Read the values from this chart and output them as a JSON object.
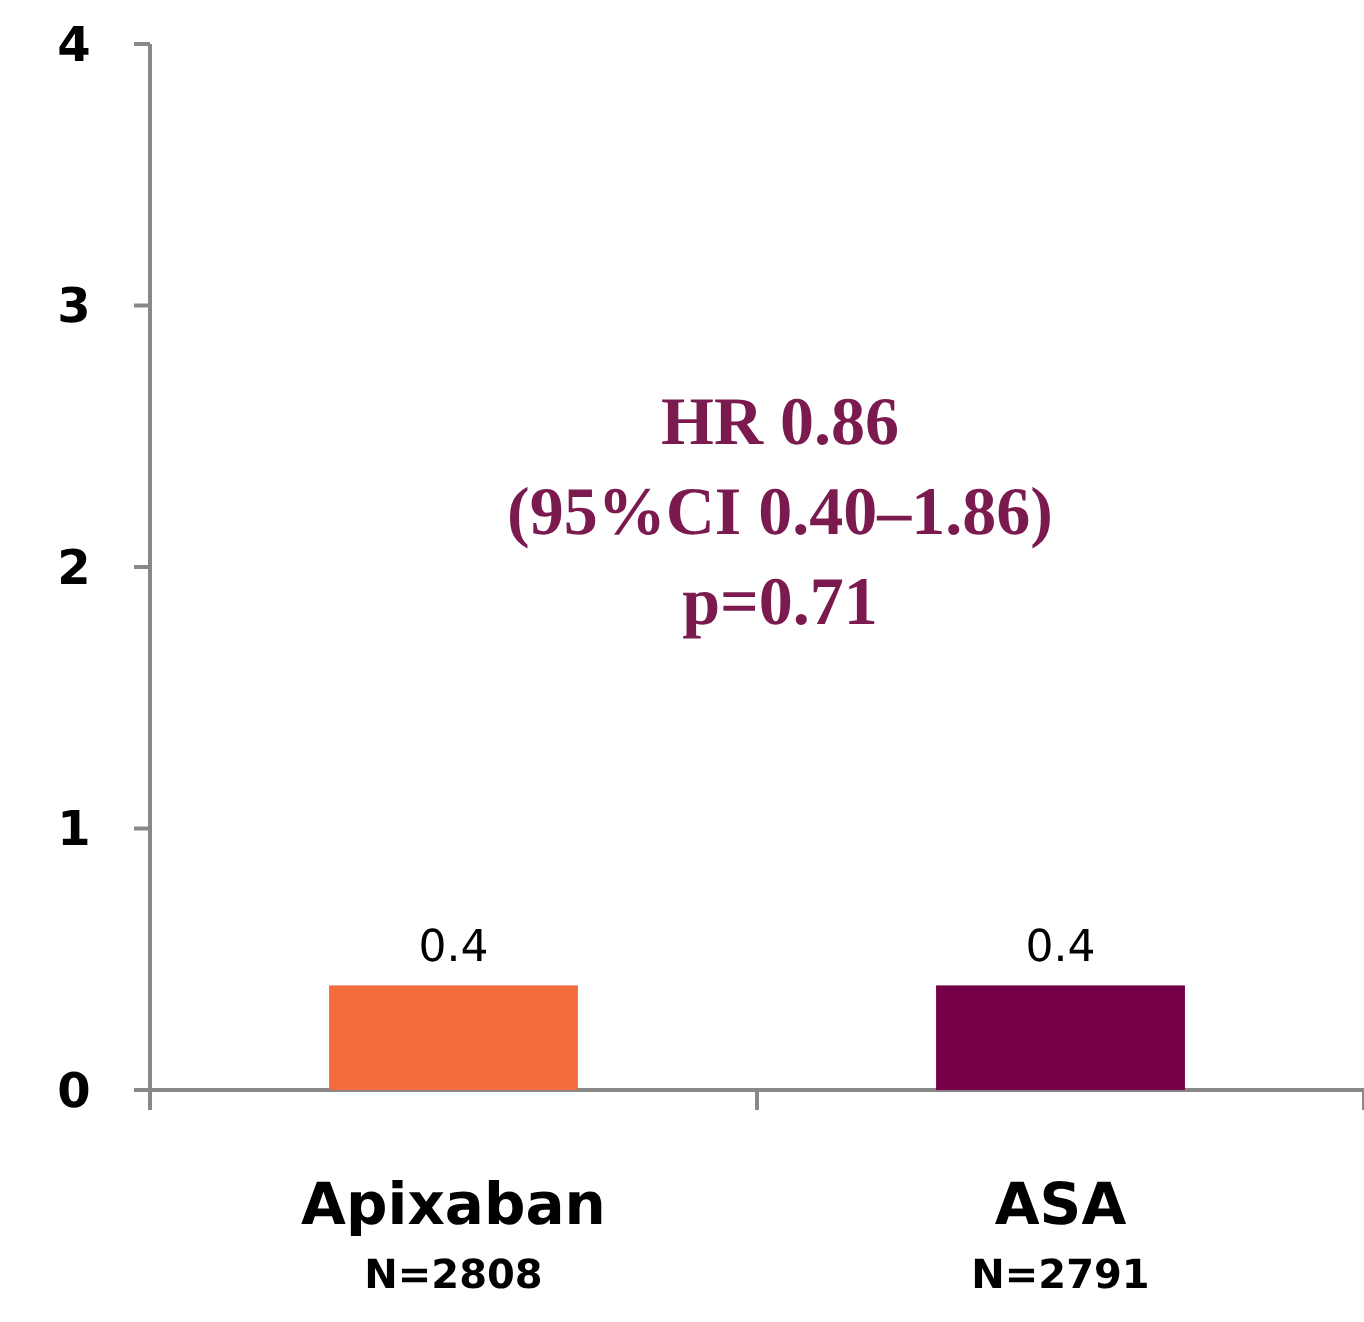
{
  "chart_data": {
    "type": "bar",
    "categories": [
      "Apixaban\nN=2808",
      "ASA\nN=2791"
    ],
    "values": [
      0.4,
      0.4
    ],
    "colors": [
      "#f26d3b",
      "#750047"
    ],
    "ylim": [
      0,
      4
    ],
    "yticks": [
      0,
      1,
      2,
      3,
      4
    ],
    "data_labels": true,
    "grid": false,
    "annotations": [
      "HR 0.86",
      "(95%CI 0.40–1.86)",
      "p=0.71"
    ]
  }
}
